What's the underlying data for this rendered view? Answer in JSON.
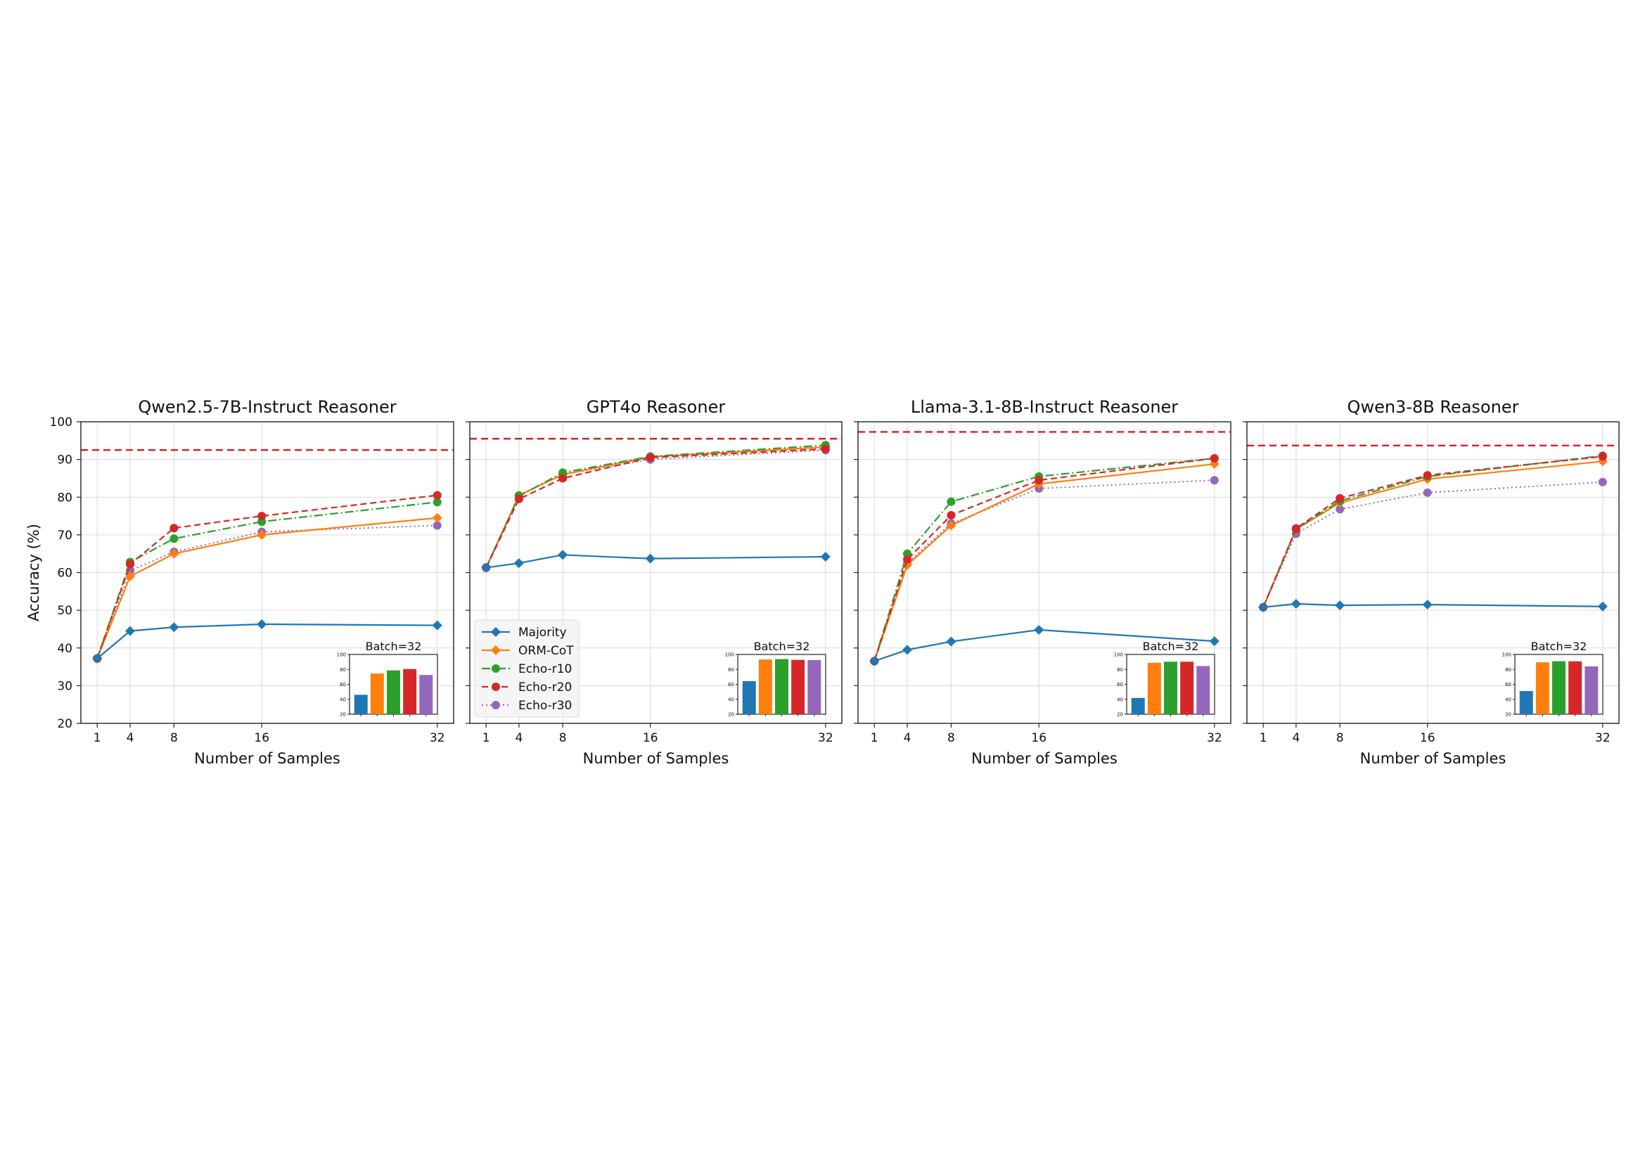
{
  "colors": {
    "Majority": "#1f77b4",
    "ORM-CoT": "#ff7f0e",
    "Echo-r10": "#2ca02c",
    "Echo-r20": "#d62728",
    "Echo-r30": "#9467bd",
    "reference_line": "#e41a1c",
    "grid": "#d9d9d9"
  },
  "legend": {
    "placement": "lower-left of second panel",
    "entries": [
      "Majority",
      "ORM-CoT",
      "Echo-r10",
      "Echo-r20",
      "Echo-r30"
    ]
  },
  "chart_data": [
    {
      "type": "line",
      "title": "Qwen2.5-7B-Instruct Reasoner",
      "xlabel": "Number of Samples",
      "ylabel": "Accuracy (%)",
      "x": [
        1,
        4,
        8,
        16,
        32
      ],
      "xticks": [
        "1",
        "4",
        "8",
        "16",
        "32"
      ],
      "ylim": [
        20,
        100
      ],
      "yticks": [
        "20",
        "30",
        "40",
        "50",
        "60",
        "70",
        "80",
        "90",
        "100"
      ],
      "grid": true,
      "reference_line": 92.5,
      "series": [
        {
          "name": "Majority",
          "values": [
            37.2,
            44.5,
            45.5,
            46.3,
            46.0
          ]
        },
        {
          "name": "ORM-CoT",
          "values": [
            37.2,
            59.0,
            65.0,
            70.0,
            74.5
          ]
        },
        {
          "name": "Echo-r10",
          "values": [
            37.2,
            62.8,
            69.0,
            73.5,
            78.7
          ]
        },
        {
          "name": "Echo-r20",
          "values": [
            37.2,
            62.2,
            71.8,
            75.0,
            80.5
          ]
        },
        {
          "name": "Echo-r30",
          "values": [
            37.2,
            60.5,
            65.5,
            70.8,
            72.5
          ]
        }
      ],
      "inset": {
        "type": "bar",
        "title": "Batch=32",
        "categories": [
          "Majority",
          "ORM-CoT",
          "Echo-r10",
          "Echo-r20",
          "Echo-r30"
        ],
        "values": [
          46,
          74.5,
          78.7,
          80.5,
          72.5
        ],
        "ylim": [
          20,
          100
        ],
        "yticks": [
          "20",
          "40",
          "60",
          "80",
          "100"
        ]
      }
    },
    {
      "type": "line",
      "title": "GPT4o Reasoner",
      "xlabel": "Number of Samples",
      "ylabel": "",
      "x": [
        1,
        4,
        8,
        16,
        32
      ],
      "xticks": [
        "1",
        "4",
        "8",
        "16",
        "32"
      ],
      "ylim": [
        20,
        100
      ],
      "yticks": [],
      "grid": true,
      "reference_line": 95.5,
      "series": [
        {
          "name": "Majority",
          "values": [
            61.3,
            62.5,
            64.7,
            63.7,
            64.2
          ]
        },
        {
          "name": "ORM-CoT",
          "values": [
            61.3,
            80.5,
            86.0,
            90.7,
            93.3
          ]
        },
        {
          "name": "Echo-r10",
          "values": [
            61.3,
            80.3,
            86.5,
            90.8,
            93.8
          ]
        },
        {
          "name": "Echo-r20",
          "values": [
            61.3,
            79.5,
            85.0,
            90.5,
            92.8
          ]
        },
        {
          "name": "Echo-r30",
          "values": [
            61.3,
            80.5,
            86.0,
            90.0,
            92.5
          ]
        }
      ],
      "inset": {
        "type": "bar",
        "title": "Batch=32",
        "categories": [
          "Majority",
          "ORM-CoT",
          "Echo-r10",
          "Echo-r20",
          "Echo-r30"
        ],
        "values": [
          64.2,
          93.3,
          93.8,
          92.8,
          92.5
        ],
        "ylim": [
          20,
          100
        ],
        "yticks": [
          "20",
          "40",
          "60",
          "80",
          "100"
        ]
      }
    },
    {
      "type": "line",
      "title": "Llama-3.1-8B-Instruct Reasoner",
      "xlabel": "Number of Samples",
      "ylabel": "",
      "x": [
        1,
        4,
        8,
        16,
        32
      ],
      "xticks": [
        "1",
        "4",
        "8",
        "16",
        "32"
      ],
      "ylim": [
        20,
        100
      ],
      "yticks": [],
      "grid": true,
      "reference_line": 97.3,
      "series": [
        {
          "name": "Majority",
          "values": [
            36.5,
            39.5,
            41.7,
            44.8,
            41.8
          ]
        },
        {
          "name": "ORM-CoT",
          "values": [
            36.5,
            62.0,
            72.5,
            83.5,
            88.8
          ]
        },
        {
          "name": "Echo-r10",
          "values": [
            36.5,
            65.0,
            78.8,
            85.5,
            90.3
          ]
        },
        {
          "name": "Echo-r20",
          "values": [
            36.5,
            63.5,
            75.2,
            84.5,
            90.3
          ]
        },
        {
          "name": "Echo-r30",
          "values": [
            36.5,
            62.5,
            73.0,
            82.3,
            84.5
          ]
        }
      ],
      "inset": {
        "type": "bar",
        "title": "Batch=32",
        "categories": [
          "Majority",
          "ORM-CoT",
          "Echo-r10",
          "Echo-r20",
          "Echo-r30"
        ],
        "values": [
          41.8,
          88.8,
          90.3,
          90.3,
          84.5
        ],
        "ylim": [
          20,
          100
        ],
        "yticks": [
          "20",
          "40",
          "60",
          "80",
          "100"
        ]
      }
    },
    {
      "type": "line",
      "title": "Qwen3-8B Reasoner",
      "xlabel": "Number of Samples",
      "ylabel": "",
      "x": [
        1,
        4,
        8,
        16,
        32
      ],
      "xticks": [
        "1",
        "4",
        "8",
        "16",
        "32"
      ],
      "ylim": [
        20,
        100
      ],
      "yticks": [],
      "grid": true,
      "reference_line": 93.7,
      "series": [
        {
          "name": "Majority",
          "values": [
            50.8,
            51.7,
            51.3,
            51.5,
            51.0
          ]
        },
        {
          "name": "ORM-CoT",
          "values": [
            50.8,
            71.5,
            78.5,
            84.8,
            89.5
          ]
        },
        {
          "name": "Echo-r10",
          "values": [
            50.8,
            71.5,
            79.0,
            85.5,
            91.0
          ]
        },
        {
          "name": "Echo-r20",
          "values": [
            50.8,
            71.7,
            79.7,
            85.8,
            90.8
          ]
        },
        {
          "name": "Echo-r30",
          "values": [
            50.8,
            70.3,
            76.8,
            81.2,
            84.0
          ]
        }
      ],
      "inset": {
        "type": "bar",
        "title": "Batch=32",
        "categories": [
          "Majority",
          "ORM-CoT",
          "Echo-r10",
          "Echo-r20",
          "Echo-r30"
        ],
        "values": [
          51.0,
          89.5,
          91.0,
          90.8,
          84.0
        ],
        "ylim": [
          20,
          100
        ],
        "yticks": [
          "20",
          "40",
          "60",
          "80",
          "100"
        ]
      }
    }
  ]
}
